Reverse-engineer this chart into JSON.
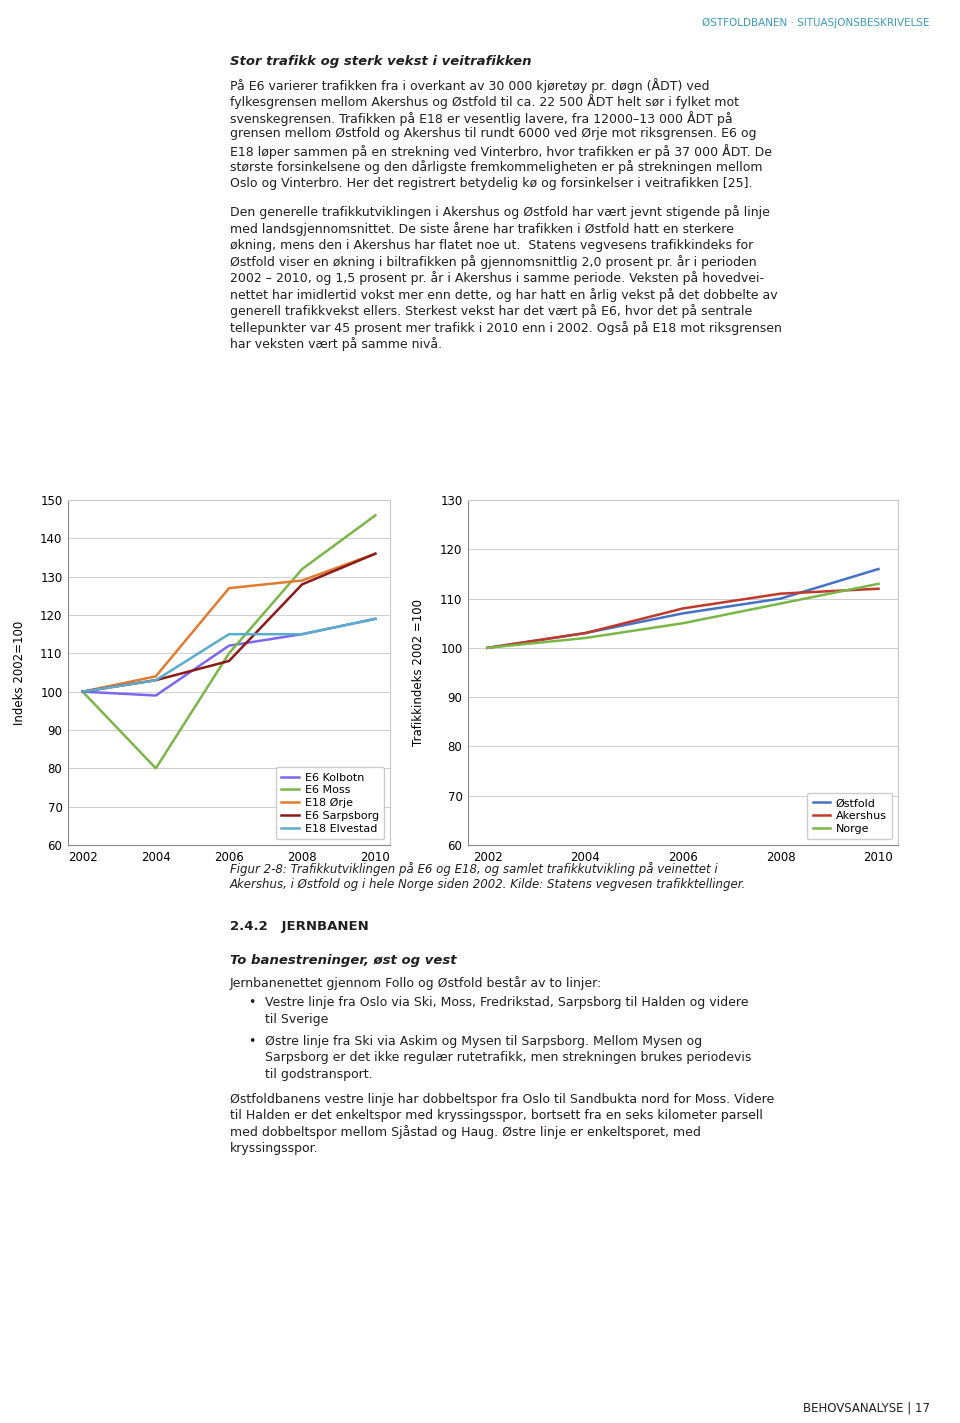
{
  "page_title": "ØSTFOLDBANEN · SITUASJONSBESKRIVELSE",
  "page_number": "BEHOVSANALYSE | 17",
  "header_text": "Stor trafikk og sterk vekst i veitrafikken",
  "body1_lines": [
    "På E6 varierer trafikken fra i overkant av 30 000 kjøretøy pr. døgn (ÅDT) ved",
    "fylkesgrensen mellom Akershus og Østfold til ca. 22 500 ÅDT helt sør i fylket mot",
    "svenskegrensen. Trafikken på E18 er vesentlig lavere, fra 12000–13 000 ÅDT på",
    "grensen mellom Østfold og Akershus til rundt 6000 ved Ørje mot riksgrensen. E6 og",
    "E18 løper sammen på en strekning ved Vinterbro, hvor trafikken er på 37 000 ÅDT. De",
    "største forsinkelsene og den dårligste fremkommeligheten er på strekningen mellom",
    "Oslo og Vinterbro. Her det registrert betydelig kø og forsinkelser i veitrafikken [25]."
  ],
  "body2_lines": [
    "Den generelle trafikkutviklingen i Akershus og Østfold har vært jevnt stigende på linje",
    "med landsgjennomsnittet. De siste årene har trafikken i Østfold hatt en sterkere",
    "økning, mens den i Akershus har flatet noe ut.  Statens vegvesens trafikkindeks for",
    "Østfold viser en økning i biltrafikken på gjennomsnittlig 2,0 prosent pr. år i perioden",
    "2002 – 2010, og 1,5 prosent pr. år i Akershus i samme periode. Veksten på hovedvei-",
    "nettet har imidlertid vokst mer enn dette, og har hatt en årlig vekst på det dobbelte av",
    "generell trafikkvekst ellers. Sterkest vekst har det vært på E6, hvor det på sentrale",
    "tellepunkter var 45 prosent mer trafikk i 2010 enn i 2002. Også på E18 mot riksgrensen",
    "har veksten vært på samme nivå."
  ],
  "caption_lines": [
    "Figur 2-8: Trafikkutviklingen på E6 og E18, og samlet trafikkutvikling på veinettet i",
    "Akershus, i Østfold og i hele Norge siden 2002. Kilde: Statens vegvesen trafikktellinger."
  ],
  "section_title": "2.4.2   JERNBANEN",
  "section_subhead": "To banestreninger, øst og vest",
  "section_text_1": "Jernbanenettet gjennom Follo og Østfold består av to linjer:",
  "bullet1_lines": [
    "Vestre linje fra Oslo via Ski, Moss, Fredrikstad, Sarpsborg til Halden og videre",
    "til Sverige"
  ],
  "bullet2_lines": [
    "Østre linje fra Ski via Askim og Mysen til Sarpsborg. Mellom Mysen og",
    "Sarpsborg er det ikke regulær rutetrafikk, men strekningen brukes periodevis",
    "til godstransport."
  ],
  "section2_lines": [
    "Østfoldbanens vestre linje har dobbeltspor fra Oslo til Sandbukta nord for Moss. Videre",
    "til Halden er det enkeltspor med kryssingsspor, bortsett fra en seks kilometer parsell",
    "med dobbeltspor mellom Sjåstad og Haug. Østre linje er enkeltsporet, med",
    "kryssingsspor."
  ],
  "left_chart": {
    "ylabel": "Indeks 2002=100",
    "years": [
      2002,
      2004,
      2006,
      2008,
      2010
    ],
    "ylim": [
      60,
      150
    ],
    "yticks": [
      60,
      70,
      80,
      90,
      100,
      110,
      120,
      130,
      140,
      150
    ],
    "series": {
      "E6 Kolbotn": {
        "color": "#7b68ee",
        "data": [
          100,
          99,
          112,
          115,
          119
        ]
      },
      "E6 Moss": {
        "color": "#7ab648",
        "data": [
          100,
          80,
          110,
          132,
          146
        ]
      },
      "E18 Ørje": {
        "color": "#e07b30",
        "data": [
          100,
          104,
          127,
          129,
          136
        ]
      },
      "E6 Sarpsborg": {
        "color": "#8b1a1a",
        "data": [
          100,
          103,
          108,
          128,
          136
        ]
      },
      "E18 Elvestad": {
        "color": "#5aaccc",
        "data": [
          100,
          103,
          115,
          115,
          119
        ]
      }
    }
  },
  "right_chart": {
    "ylabel": "Trafikkindeks 2002 =100",
    "years": [
      2002,
      2004,
      2006,
      2008,
      2010
    ],
    "ylim": [
      60,
      130
    ],
    "yticks": [
      60,
      70,
      80,
      90,
      100,
      110,
      120,
      130
    ],
    "series": {
      "Østfold": {
        "color": "#4472c4",
        "data": [
          100,
          103,
          107,
          110,
          116
        ]
      },
      "Akershus": {
        "color": "#c0392b",
        "data": [
          100,
          103,
          108,
          111,
          112
        ]
      },
      "Norge": {
        "color": "#7ab648",
        "data": [
          100,
          102,
          105,
          109,
          113
        ]
      }
    }
  },
  "colors": {
    "background": "#ffffff",
    "text": "#231f20",
    "accent": "#3a9bbf",
    "grid": "#c8c8c8",
    "rule": "#b0b0b0"
  },
  "fig_w": 960,
  "fig_h": 1423
}
